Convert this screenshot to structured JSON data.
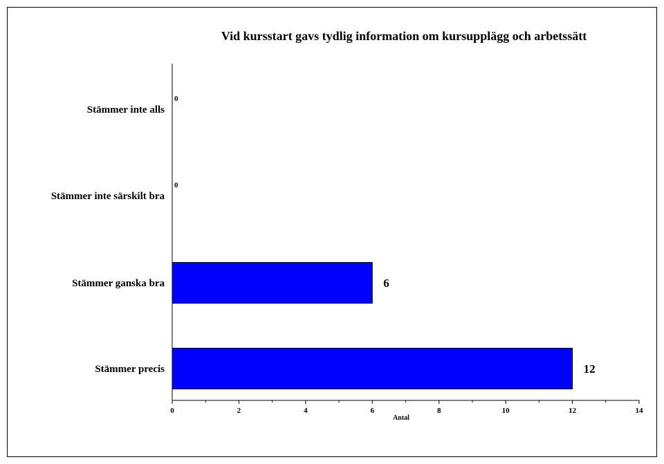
{
  "chart_data": {
    "type": "bar",
    "orientation": "horizontal",
    "title": "Vid kursstart gavs tydlig information om kursupplägg och arbetssätt",
    "xlabel": "Antal",
    "ylabel": "",
    "categories": [
      "Stämmer inte alls",
      "Stämmer inte särskilt bra",
      "Stämmer ganska bra",
      "Stämmer precis"
    ],
    "values": [
      0,
      0,
      6,
      12
    ],
    "data_labels": [
      "0",
      "0",
      "6",
      "12"
    ],
    "xlim": [
      0,
      14
    ],
    "x_ticks": [
      "0",
      "2",
      "4",
      "6",
      "8",
      "10",
      "12",
      "14"
    ],
    "bar_color": "#0000ff",
    "grid": false,
    "legend": "none"
  }
}
